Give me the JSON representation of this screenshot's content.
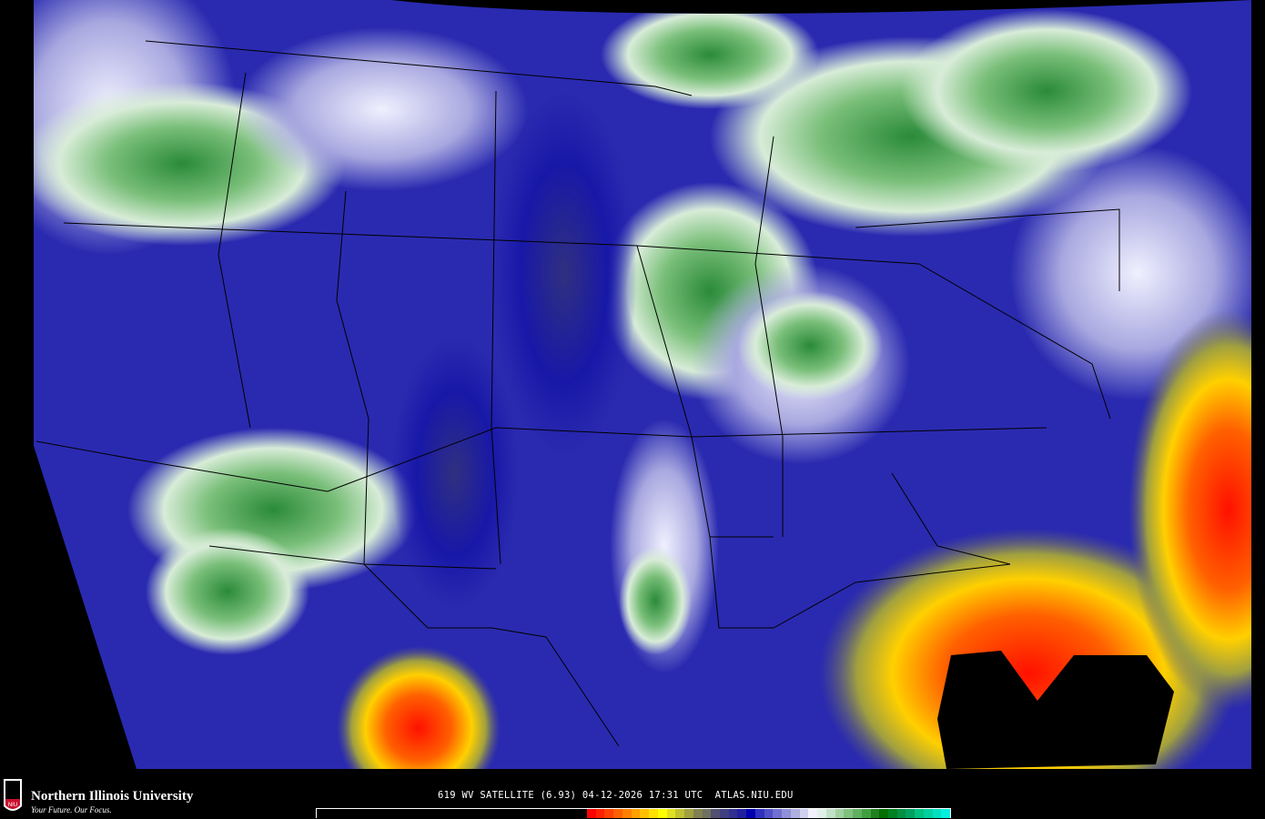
{
  "logo": {
    "name": "Northern Illinois University",
    "tagline": "Your Future. Our Focus.",
    "shield_text": "NIU"
  },
  "caption": "619 WV SATELLITE (6.93) 04-12-2026 17:31 UTC  ATLAS.NIU.EDU",
  "colorbar": {
    "colors": [
      "#ff0000",
      "#ff2000",
      "#ff4000",
      "#ff6000",
      "#ff8000",
      "#ffa000",
      "#ffc000",
      "#ffe000",
      "#ffff00",
      "#e0e020",
      "#c0c030",
      "#a0a040",
      "#808050",
      "#707060",
      "#505070",
      "#404080",
      "#303090",
      "#2020a0",
      "#0000b0",
      "#3030c0",
      "#5050c8",
      "#7070d0",
      "#9090d8",
      "#b0b0e0",
      "#d0d0f0",
      "#f0f0ff",
      "#e0f0e8",
      "#c0e0c8",
      "#a0d0a0",
      "#80c080",
      "#60b060",
      "#40a040",
      "#208020",
      "#007000",
      "#008020",
      "#009040",
      "#00a060",
      "#00c080",
      "#00d0a0",
      "#00e0c0",
      "#00f0e0"
    ]
  },
  "map": {
    "projection_fill": "#000000",
    "background_color": "#2a2ab0"
  }
}
